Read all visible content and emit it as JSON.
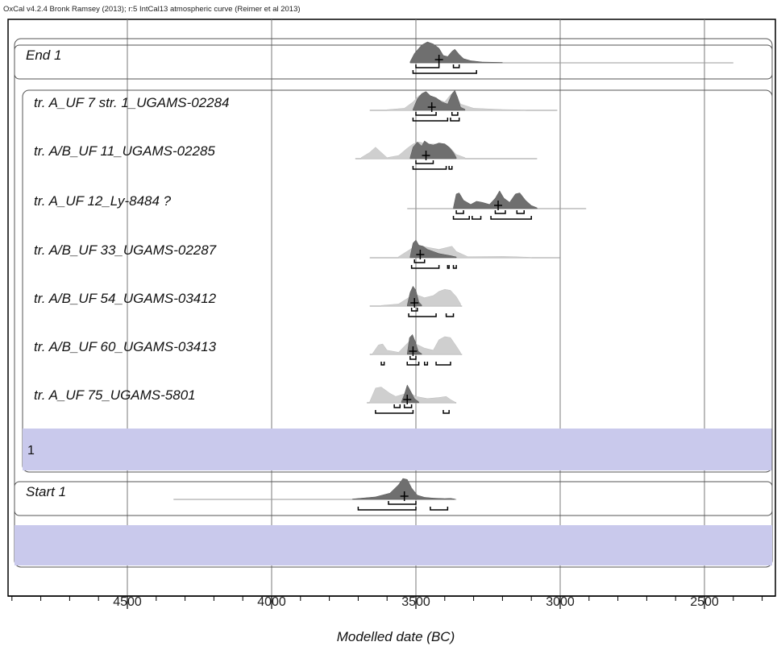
{
  "header": "OxCal v4.2.4 Bronk Ramsey (2013); r:5 IntCal13 atmospheric curve (Reimer et al 2013)",
  "chart_data": {
    "type": "density-ridge",
    "xlabel": "Modelled date (BC)",
    "xlim": [
      4900,
      2250
    ],
    "ticks": [
      4500,
      4000,
      3500,
      3000,
      2500
    ],
    "tick_labels": [
      "4500",
      "4000",
      "3500",
      "3000",
      "2500"
    ],
    "minor_tick_step": 100,
    "grid": "vertical at major ticks",
    "colors": {
      "posterior": "#6f6f6f",
      "prior": "#cfcfcf",
      "phase": "#c9c9ec"
    },
    "phase_label": "1",
    "items": [
      {
        "name": "End 1",
        "mean": 3420,
        "line": [
          3520,
          2400
        ],
        "posterior": [
          [
            3520,
            0.05
          ],
          [
            3505,
            0.45
          ],
          [
            3480,
            0.85
          ],
          [
            3460,
            1.0
          ],
          [
            3440,
            0.9
          ],
          [
            3420,
            0.7
          ],
          [
            3405,
            0.35
          ],
          [
            3390,
            0.3
          ],
          [
            3375,
            0.55
          ],
          [
            3365,
            0.65
          ],
          [
            3350,
            0.4
          ],
          [
            3335,
            0.2
          ],
          [
            3310,
            0.1
          ],
          [
            3270,
            0.04
          ],
          [
            3200,
            0.02
          ]
        ],
        "prior": [],
        "hpd68": [
          [
            3500,
            3420
          ],
          [
            3370,
            3350
          ]
        ],
        "hpd95": [
          [
            3510,
            3290
          ]
        ]
      },
      {
        "name": "tr. A_UF 7 str. 1_UGAMS-02284",
        "mean": 3445,
        "line": [
          3660,
          3010
        ],
        "posterior": [
          [
            3510,
            0.05
          ],
          [
            3495,
            0.55
          ],
          [
            3480,
            0.8
          ],
          [
            3465,
            0.9
          ],
          [
            3450,
            0.7
          ],
          [
            3430,
            0.6
          ],
          [
            3410,
            0.4
          ],
          [
            3390,
            0.3
          ],
          [
            3375,
            0.8
          ],
          [
            3365,
            0.95
          ],
          [
            3355,
            0.6
          ],
          [
            3345,
            0.15
          ],
          [
            3330,
            0.05
          ]
        ],
        "prior": [
          [
            3600,
            0.03
          ],
          [
            3540,
            0.1
          ],
          [
            3510,
            0.4
          ],
          [
            3490,
            0.7
          ],
          [
            3470,
            0.8
          ],
          [
            3440,
            0.6
          ],
          [
            3400,
            0.4
          ],
          [
            3380,
            0.75
          ],
          [
            3365,
            0.8
          ],
          [
            3345,
            0.3
          ],
          [
            3300,
            0.1
          ],
          [
            3200,
            0.04
          ],
          [
            3120,
            0.02
          ]
        ],
        "hpd68": [
          [
            3500,
            3430
          ],
          [
            3375,
            3355
          ]
        ],
        "hpd95": [
          [
            3510,
            3390
          ],
          [
            3380,
            3350
          ]
        ]
      },
      {
        "name": "tr. A/B_UF 11_UGAMS-02285",
        "mean": 3465,
        "line": [
          3710,
          3080
        ],
        "posterior": [
          [
            3520,
            0.05
          ],
          [
            3510,
            0.55
          ],
          [
            3495,
            0.8
          ],
          [
            3480,
            0.6
          ],
          [
            3470,
            0.85
          ],
          [
            3455,
            0.7
          ],
          [
            3440,
            0.65
          ],
          [
            3420,
            0.75
          ],
          [
            3400,
            0.7
          ],
          [
            3385,
            0.55
          ],
          [
            3370,
            0.3
          ],
          [
            3360,
            0.05
          ]
        ],
        "prior": [
          [
            3690,
            0.05
          ],
          [
            3660,
            0.3
          ],
          [
            3640,
            0.55
          ],
          [
            3620,
            0.3
          ],
          [
            3600,
            0.05
          ],
          [
            3560,
            0.15
          ],
          [
            3530,
            0.5
          ],
          [
            3510,
            0.7
          ],
          [
            3490,
            0.8
          ],
          [
            3460,
            0.7
          ],
          [
            3430,
            0.7
          ],
          [
            3400,
            0.72
          ],
          [
            3380,
            0.5
          ],
          [
            3360,
            0.2
          ],
          [
            3330,
            0.05
          ]
        ],
        "hpd68": [
          [
            3500,
            3440
          ]
        ],
        "hpd95": [
          [
            3510,
            3395
          ],
          [
            3385,
            3375
          ]
        ]
      },
      {
        "name": "tr. A_UF 12_Ly-8484 ?",
        "mean": 3215,
        "line": [
          3530,
          2910
        ],
        "posterior": [
          [
            3370,
            0.05
          ],
          [
            3360,
            0.7
          ],
          [
            3350,
            0.75
          ],
          [
            3335,
            0.4
          ],
          [
            3310,
            0.2
          ],
          [
            3290,
            0.35
          ],
          [
            3270,
            0.3
          ],
          [
            3245,
            0.2
          ],
          [
            3225,
            0.5
          ],
          [
            3210,
            0.85
          ],
          [
            3195,
            0.5
          ],
          [
            3175,
            0.3
          ],
          [
            3155,
            0.7
          ],
          [
            3140,
            0.75
          ],
          [
            3120,
            0.4
          ],
          [
            3100,
            0.15
          ],
          [
            3080,
            0.04
          ]
        ],
        "prior": [],
        "hpd68": [
          [
            3360,
            3335
          ],
          [
            3225,
            3190
          ],
          [
            3150,
            3125
          ]
        ],
        "hpd95": [
          [
            3370,
            3315
          ],
          [
            3305,
            3275
          ],
          [
            3240,
            3100
          ]
        ]
      },
      {
        "name": "tr. A/B_UF 33_UGAMS-02287",
        "mean": 3485,
        "line": [
          3660,
          3000
        ],
        "posterior": [
          [
            3520,
            0.05
          ],
          [
            3510,
            0.7
          ],
          [
            3500,
            0.85
          ],
          [
            3490,
            0.6
          ],
          [
            3475,
            0.55
          ],
          [
            3460,
            0.4
          ],
          [
            3440,
            0.3
          ],
          [
            3420,
            0.2
          ],
          [
            3400,
            0.15
          ],
          [
            3380,
            0.1
          ],
          [
            3360,
            0.04
          ]
        ],
        "prior": [
          [
            3560,
            0.05
          ],
          [
            3520,
            0.4
          ],
          [
            3500,
            0.6
          ],
          [
            3460,
            0.5
          ],
          [
            3420,
            0.4
          ],
          [
            3390,
            0.5
          ],
          [
            3375,
            0.55
          ],
          [
            3360,
            0.3
          ],
          [
            3320,
            0.05
          ],
          [
            3200,
            0.06
          ],
          [
            3160,
            0.05
          ],
          [
            3100,
            0.02
          ]
        ],
        "hpd68": [
          [
            3505,
            3470
          ]
        ],
        "hpd95": [
          [
            3515,
            3420
          ],
          [
            3390,
            3385
          ],
          [
            3370,
            3360
          ]
        ]
      },
      {
        "name": "tr. A/B_UF 54_UGAMS-03412",
        "mean": 3505,
        "line": [
          3660,
          3340
        ],
        "posterior": [
          [
            3530,
            0.05
          ],
          [
            3520,
            0.65
          ],
          [
            3510,
            0.95
          ],
          [
            3500,
            0.75
          ],
          [
            3490,
            0.2
          ],
          [
            3480,
            0.05
          ]
        ],
        "prior": [
          [
            3620,
            0.03
          ],
          [
            3560,
            0.1
          ],
          [
            3520,
            0.45
          ],
          [
            3500,
            0.55
          ],
          [
            3470,
            0.4
          ],
          [
            3440,
            0.5
          ],
          [
            3420,
            0.7
          ],
          [
            3400,
            0.8
          ],
          [
            3380,
            0.75
          ],
          [
            3360,
            0.45
          ],
          [
            3345,
            0.1
          ]
        ],
        "hpd68": [
          [
            3515,
            3495
          ]
        ],
        "hpd95": [
          [
            3525,
            3430
          ],
          [
            3395,
            3370
          ]
        ]
      },
      {
        "name": "tr. A/B_UF 60_UGAMS-03413",
        "mean": 3510,
        "line": [
          3660,
          3340
        ],
        "posterior": [
          [
            3530,
            0.05
          ],
          [
            3522,
            0.8
          ],
          [
            3512,
            0.95
          ],
          [
            3502,
            0.6
          ],
          [
            3492,
            0.15
          ],
          [
            3480,
            0.03
          ]
        ],
        "prior": [
          [
            3650,
            0.05
          ],
          [
            3630,
            0.45
          ],
          [
            3615,
            0.5
          ],
          [
            3600,
            0.2
          ],
          [
            3560,
            0.1
          ],
          [
            3525,
            0.6
          ],
          [
            3500,
            0.5
          ],
          [
            3470,
            0.3
          ],
          [
            3440,
            0.2
          ],
          [
            3420,
            0.7
          ],
          [
            3400,
            0.85
          ],
          [
            3380,
            0.8
          ],
          [
            3360,
            0.4
          ],
          [
            3345,
            0.08
          ]
        ],
        "hpd68": [
          [
            3520,
            3500
          ]
        ],
        "hpd95": [
          [
            3620,
            3610
          ],
          [
            3530,
            3490
          ],
          [
            3470,
            3460
          ],
          [
            3430,
            3380
          ]
        ]
      },
      {
        "name": "tr. A_UF 75_UGAMS-5801",
        "mean": 3530,
        "line": [
          3670,
          3360
        ],
        "posterior": [
          [
            3550,
            0.05
          ],
          [
            3540,
            0.4
          ],
          [
            3530,
            0.85
          ],
          [
            3520,
            0.6
          ],
          [
            3505,
            0.2
          ],
          [
            3490,
            0.04
          ]
        ],
        "prior": [
          [
            3660,
            0.05
          ],
          [
            3640,
            0.7
          ],
          [
            3620,
            0.75
          ],
          [
            3590,
            0.45
          ],
          [
            3570,
            0.3
          ],
          [
            3545,
            0.4
          ],
          [
            3525,
            0.5
          ],
          [
            3500,
            0.3
          ],
          [
            3460,
            0.2
          ],
          [
            3420,
            0.25
          ],
          [
            3395,
            0.3
          ],
          [
            3380,
            0.15
          ],
          [
            3365,
            0.04
          ]
        ],
        "hpd68": [
          [
            3575,
            3555
          ],
          [
            3540,
            3515
          ]
        ],
        "hpd95": [
          [
            3640,
            3510
          ],
          [
            3405,
            3385
          ]
        ]
      },
      {
        "name": "Start 1",
        "mean": 3540,
        "line": [
          4340,
          3360
        ],
        "posterior": [
          [
            3720,
            0.02
          ],
          [
            3640,
            0.12
          ],
          [
            3590,
            0.3
          ],
          [
            3560,
            0.7
          ],
          [
            3545,
            1.0
          ],
          [
            3530,
            0.95
          ],
          [
            3515,
            0.55
          ],
          [
            3495,
            0.2
          ],
          [
            3470,
            0.1
          ],
          [
            3440,
            0.06
          ],
          [
            3400,
            0.04
          ],
          [
            3380,
            0.05
          ],
          [
            3365,
            0.02
          ]
        ],
        "prior": [],
        "hpd68": [
          [
            3595,
            3500
          ]
        ],
        "hpd95": [
          [
            3700,
            3500
          ],
          [
            3450,
            3390
          ]
        ]
      }
    ]
  }
}
